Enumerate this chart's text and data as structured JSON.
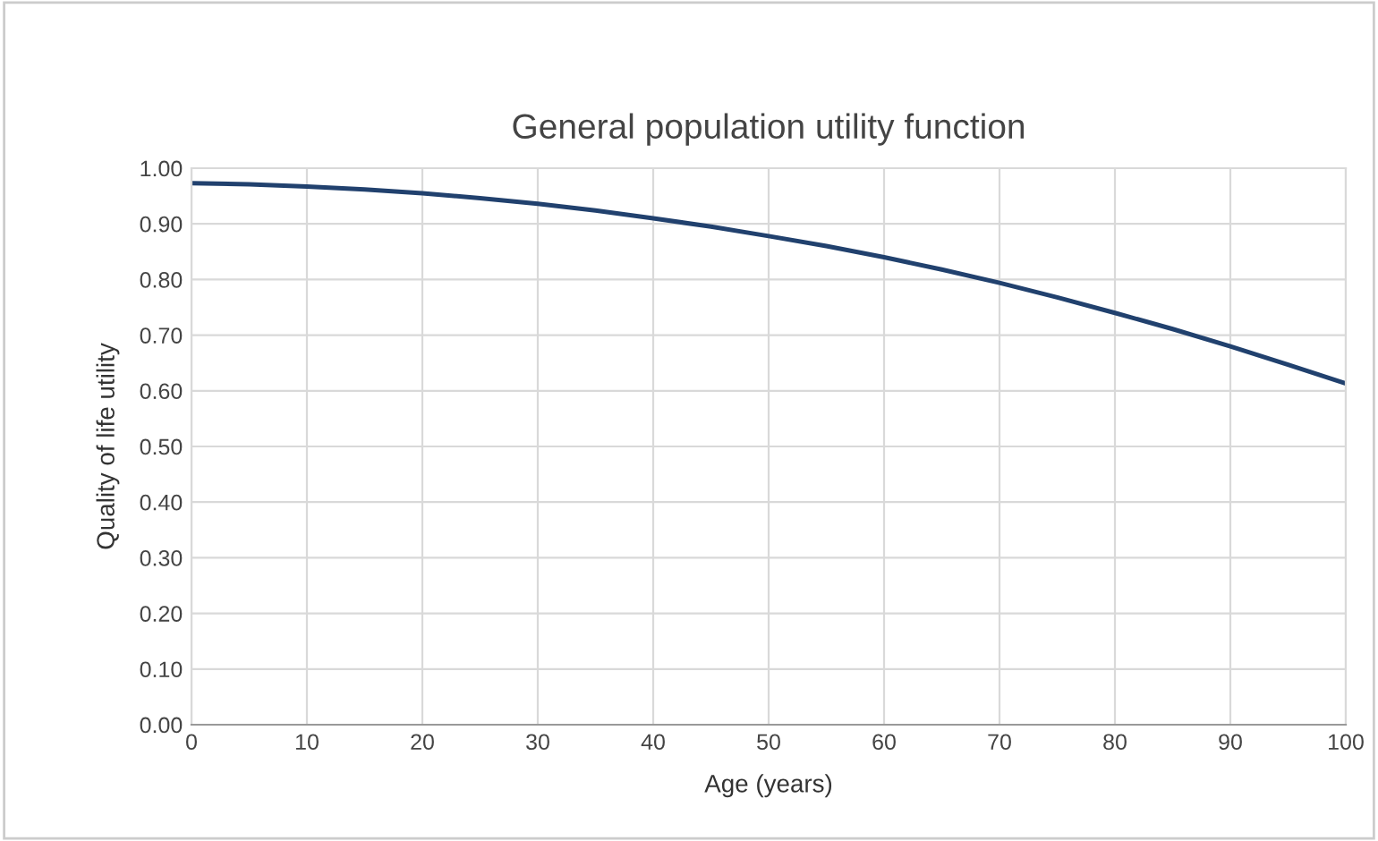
{
  "chart_data": {
    "type": "line",
    "title": "General population utility function",
    "xlabel": "Age (years)",
    "ylabel": "Quality of life utility",
    "x": [
      0,
      5,
      10,
      15,
      20,
      25,
      30,
      35,
      40,
      45,
      50,
      55,
      60,
      65,
      70,
      75,
      80,
      85,
      90,
      95,
      100
    ],
    "series": [
      {
        "color": "#21416e",
        "values": [
          0.973,
          0.971,
          0.967,
          0.962,
          0.955,
          0.946,
          0.936,
          0.924,
          0.91,
          0.895,
          0.878,
          0.86,
          0.84,
          0.818,
          0.794,
          0.768,
          0.74,
          0.711,
          0.68,
          0.647,
          0.613
        ]
      }
    ],
    "xlim": [
      0,
      100
    ],
    "xticks": [
      0,
      10,
      20,
      30,
      40,
      50,
      60,
      70,
      80,
      90,
      100
    ],
    "ylim": [
      0,
      1
    ],
    "yticks": [
      {
        "value": 0,
        "label": "0.00"
      },
      {
        "value": 0.1,
        "label": "0.10"
      },
      {
        "value": 0.2,
        "label": "0.20"
      },
      {
        "value": 0.3,
        "label": "0.30"
      },
      {
        "value": 0.4,
        "label": "0.40"
      },
      {
        "value": 0.5,
        "label": "0.50"
      },
      {
        "value": 0.6,
        "label": "0.60"
      },
      {
        "value": 0.7,
        "label": "0.70"
      },
      {
        "value": 0.8,
        "label": "0.80"
      },
      {
        "value": 0.9,
        "label": "0.90"
      },
      {
        "value": 1.0,
        "label": "1.00"
      }
    ],
    "grid": true,
    "legend": false,
    "marker": "none",
    "line_style": "solid"
  }
}
